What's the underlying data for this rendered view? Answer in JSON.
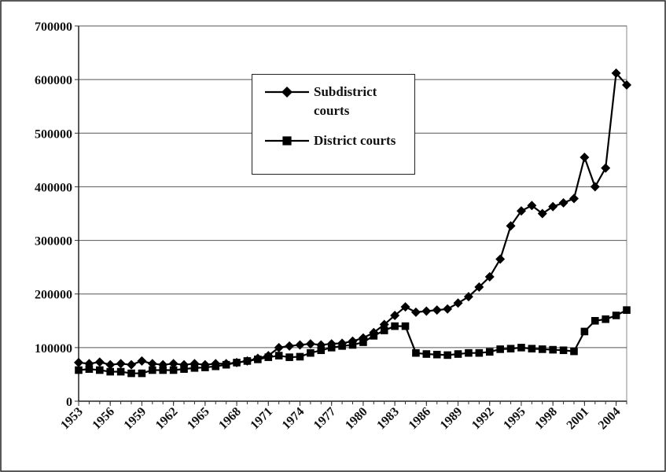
{
  "chart_data": {
    "type": "line",
    "x": [
      1953,
      1954,
      1955,
      1956,
      1957,
      1958,
      1959,
      1960,
      1961,
      1962,
      1963,
      1964,
      1965,
      1966,
      1967,
      1968,
      1969,
      1970,
      1971,
      1972,
      1973,
      1974,
      1975,
      1976,
      1977,
      1978,
      1979,
      1980,
      1981,
      1982,
      1983,
      1984,
      1985,
      1986,
      1987,
      1988,
      1989,
      1990,
      1991,
      1992,
      1993,
      1994,
      1995,
      1996,
      1997,
      1998,
      1999,
      2000,
      2001,
      2002,
      2003,
      2004,
      2005
    ],
    "series": [
      {
        "name": "Subdistrict courts",
        "color": "#000000",
        "marker": "diamond",
        "values": [
          72000,
          70000,
          73000,
          68000,
          70000,
          68000,
          75000,
          70000,
          68000,
          70000,
          68000,
          70000,
          68000,
          70000,
          70000,
          72000,
          75000,
          80000,
          85000,
          100000,
          103000,
          105000,
          107000,
          105000,
          107000,
          108000,
          112000,
          118000,
          128000,
          143000,
          160000,
          176000,
          166000,
          168000,
          170000,
          172000,
          183000,
          195000,
          213000,
          232000,
          265000,
          327000,
          355000,
          365000,
          350000,
          363000,
          370000,
          378000,
          455000,
          400000,
          435000,
          612000,
          590000
        ]
      },
      {
        "name": "District courts",
        "color": "#000000",
        "marker": "square",
        "values": [
          58000,
          60000,
          58000,
          55000,
          55000,
          52000,
          52000,
          58000,
          58000,
          58000,
          60000,
          62000,
          63000,
          65000,
          68000,
          72000,
          75000,
          78000,
          82000,
          85000,
          82000,
          83000,
          90000,
          95000,
          100000,
          103000,
          105000,
          110000,
          122000,
          132000,
          140000,
          140000,
          90000,
          88000,
          87000,
          86000,
          88000,
          90000,
          90000,
          92000,
          97000,
          98000,
          100000,
          98000,
          97000,
          96000,
          95000,
          93000,
          130000,
          150000,
          153000,
          160000,
          170000
        ]
      }
    ],
    "xlim": [
      1953,
      2005
    ],
    "xticks": [
      1953,
      1956,
      1959,
      1962,
      1965,
      1968,
      1971,
      1974,
      1977,
      1980,
      1983,
      1986,
      1989,
      1992,
      1995,
      1998,
      2001,
      2004
    ],
    "ylim": [
      0,
      700000
    ],
    "yticks": [
      0,
      100000,
      200000,
      300000,
      400000,
      500000,
      600000,
      700000
    ],
    "grid": true
  }
}
